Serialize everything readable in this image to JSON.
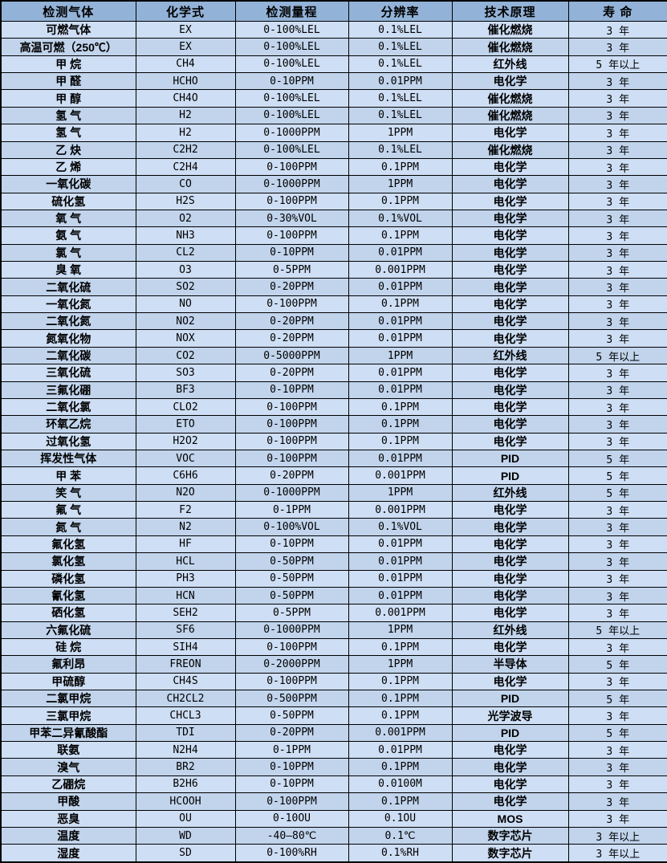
{
  "colors": {
    "header_bg": "#93b2d7",
    "row_odd_bg": "#cedef4",
    "row_even_bg": "#c1d4ec",
    "border": "#000000",
    "text": "#000000"
  },
  "table": {
    "headers": [
      "检测气体",
      "化学式",
      "检测量程",
      "分辨率",
      "技术原理",
      "寿 命"
    ],
    "rows": [
      [
        "可燃气体",
        "EX",
        "0-100%LEL",
        "0.1%LEL",
        "催化燃烧",
        "3 年"
      ],
      [
        "高温可燃（250℃）",
        "EX",
        "0-100%LEL",
        "0.1%LEL",
        "催化燃烧",
        "3 年"
      ],
      [
        "甲 烷",
        "CH4",
        "0-100%LEL",
        "0.1%LEL",
        "红外线",
        "5 年以上"
      ],
      [
        "甲 醛",
        "HCHO",
        "0-10PPM",
        "0.01PPM",
        "电化学",
        "3 年"
      ],
      [
        "甲 醇",
        "CH4O",
        "0-100%LEL",
        "0.1%LEL",
        "催化燃烧",
        "3 年"
      ],
      [
        "氢 气",
        "H2",
        "0-100%LEL",
        "0.1%LEL",
        "催化燃烧",
        "3 年"
      ],
      [
        "氢 气",
        "H2",
        "0-1000PPM",
        "1PPM",
        "电化学",
        "3 年"
      ],
      [
        "乙 炔",
        "C2H2",
        "0-100%LEL",
        "0.1%LEL",
        "催化燃烧",
        "3 年"
      ],
      [
        "乙 烯",
        "C2H4",
        "0-100PPM",
        "0.1PPM",
        "电化学",
        "3 年"
      ],
      [
        "一氧化碳",
        "CO",
        "0-1000PPM",
        "1PPM",
        "电化学",
        "3 年"
      ],
      [
        "硫化氢",
        "H2S",
        "0-100PPM",
        "0.1PPM",
        "电化学",
        "3 年"
      ],
      [
        "氧 气",
        "O2",
        "0-30%VOL",
        "0.1%VOL",
        "电化学",
        "3 年"
      ],
      [
        "氨 气",
        "NH3",
        "0-100PPM",
        "0.1PPM",
        "电化学",
        "3 年"
      ],
      [
        "氯 气",
        "CL2",
        "0-10PPM",
        "0.01PPM",
        "电化学",
        "3 年"
      ],
      [
        "臭 氧",
        "O3",
        "0-5PPM",
        "0.001PPM",
        "电化学",
        "3 年"
      ],
      [
        "二氧化硫",
        "SO2",
        "0-20PPM",
        "0.01PPM",
        "电化学",
        "3 年"
      ],
      [
        "一氧化氮",
        "NO",
        "0-100PPM",
        "0.1PPM",
        "电化学",
        "3 年"
      ],
      [
        "二氧化氮",
        "NO2",
        "0-20PPM",
        "0.01PPM",
        "电化学",
        "3 年"
      ],
      [
        "氮氧化物",
        "NOX",
        "0-20PPM",
        "0.01PPM",
        "电化学",
        "3 年"
      ],
      [
        "二氧化碳",
        "CO2",
        "0-5000PPM",
        "1PPM",
        "红外线",
        "5 年以上"
      ],
      [
        "三氧化硫",
        "SO3",
        "0-20PPM",
        "0.01PPM",
        "电化学",
        "3 年"
      ],
      [
        "三氟化硼",
        "BF3",
        "0-10PPM",
        "0.01PPM",
        "电化学",
        "3 年"
      ],
      [
        "二氧化氯",
        "CLO2",
        "0-100PPM",
        "0.1PPM",
        "电化学",
        "3 年"
      ],
      [
        "环氧乙烷",
        "ETO",
        "0-100PPM",
        "0.1PPM",
        "电化学",
        "3 年"
      ],
      [
        "过氧化氢",
        "H2O2",
        "0-100PPM",
        "0.1PPM",
        "电化学",
        "3 年"
      ],
      [
        "挥发性气体",
        "VOC",
        "0-100PPM",
        "0.01PPM",
        "PID",
        "5 年"
      ],
      [
        "甲 苯",
        "C6H6",
        "0-20PPM",
        "0.001PPM",
        "PID",
        "5 年"
      ],
      [
        "笑 气",
        "N2O",
        "0-1000PPM",
        "1PPM",
        "红外线",
        "5 年"
      ],
      [
        "氟 气",
        "F2",
        "0-1PPM",
        "0.001PPM",
        "电化学",
        "3 年"
      ],
      [
        "氮 气",
        "N2",
        "0-100%VOL",
        "0.1%VOL",
        "电化学",
        "3 年"
      ],
      [
        "氟化氢",
        "HF",
        "0-10PPM",
        "0.01PPM",
        "电化学",
        "3 年"
      ],
      [
        "氯化氢",
        "HCL",
        "0-50PPM",
        "0.01PPM",
        "电化学",
        "3 年"
      ],
      [
        "磷化氢",
        "PH3",
        "0-50PPM",
        "0.01PPM",
        "电化学",
        "3 年"
      ],
      [
        "氰化氢",
        "HCN",
        "0-50PPM",
        "0.01PPM",
        "电化学",
        "3 年"
      ],
      [
        "硒化氢",
        "SEH2",
        "0-5PPM",
        "0.001PPM",
        "电化学",
        "3 年"
      ],
      [
        "六氟化硫",
        "SF6",
        "0-1000PPM",
        "1PPM",
        "红外线",
        "5 年以上"
      ],
      [
        "硅 烷",
        "SIH4",
        "0-100PPM",
        "0.1PPM",
        "电化学",
        "3 年"
      ],
      [
        "氟利昂",
        "FREON",
        "0-2000PPM",
        "1PPM",
        "半导体",
        "5 年"
      ],
      [
        "甲硫醇",
        "CH4S",
        "0-100PPM",
        "0.1PPM",
        "电化学",
        "3 年"
      ],
      [
        "二氯甲烷",
        "CH2CL2",
        "0-500PPM",
        "0.1PPM",
        "PID",
        "5 年"
      ],
      [
        "三氯甲烷",
        "CHCL3",
        "0-50PPM",
        "0.1PPM",
        "光学波导",
        "3 年"
      ],
      [
        "甲苯二异氰酸酯",
        "TDI",
        "0-20PPM",
        "0.001PPM",
        "PID",
        "5 年"
      ],
      [
        "联氨",
        "N2H4",
        "0-1PPM",
        "0.01PPM",
        "电化学",
        "3 年"
      ],
      [
        "溴气",
        "BR2",
        "0-10PPM",
        "0.1PPM",
        "电化学",
        "3 年"
      ],
      [
        "乙硼烷",
        "B2H6",
        "0-10PPM",
        "0.0100M",
        "电化学",
        "3 年"
      ],
      [
        "甲酸",
        "HCOOH",
        "0-100PPM",
        "0.1PPM",
        "电化学",
        "3 年"
      ],
      [
        "恶臭",
        "OU",
        "0-10OU",
        "0.1OU",
        "MOS",
        "3 年"
      ],
      [
        "温度",
        "WD",
        "-40—80℃",
        "0.1℃",
        "数字芯片",
        "3 年以上"
      ],
      [
        "湿度",
        "SD",
        "0-100%RH",
        "0.1%RH",
        "数字芯片",
        "3 年以上"
      ]
    ]
  }
}
